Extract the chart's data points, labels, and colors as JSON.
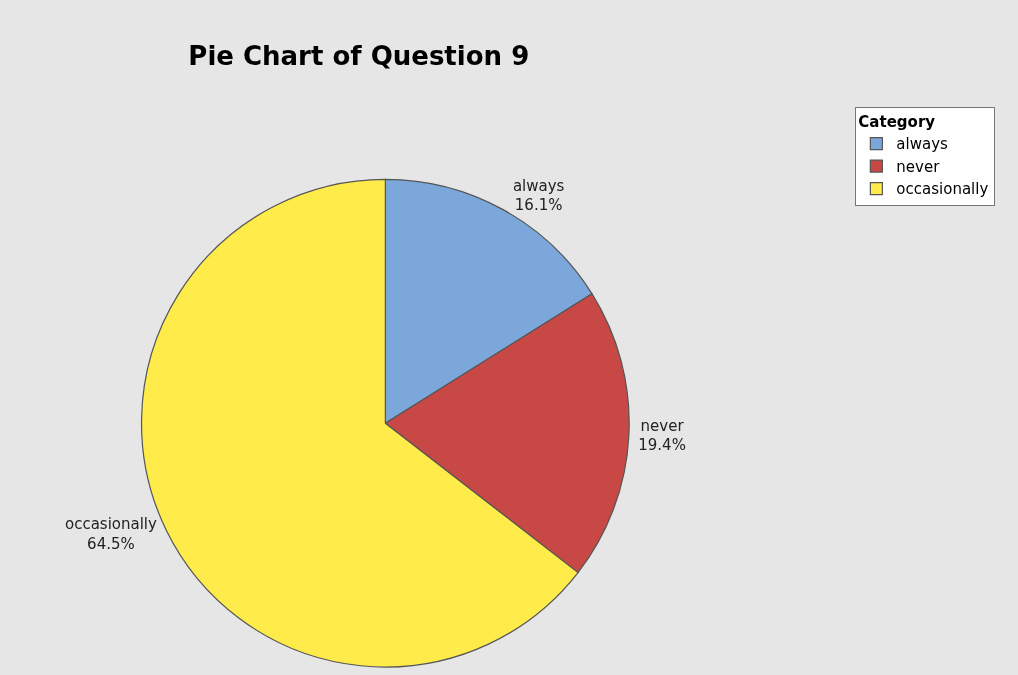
{
  "chart_data": {
    "type": "pie",
    "title": "Pie Chart of Question 9",
    "legend_title": "Category",
    "categories": [
      "always",
      "never",
      "occasionally"
    ],
    "values": [
      16.1,
      19.4,
      64.5
    ],
    "value_labels": [
      "16.1%",
      "19.4%",
      "64.5%"
    ],
    "colors": [
      "#7ba7db",
      "#c84846",
      "#ffeb4a"
    ],
    "legend": "top right"
  }
}
